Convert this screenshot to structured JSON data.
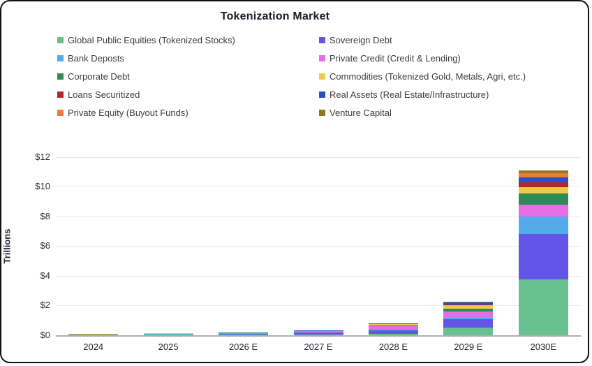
{
  "title": "Tokenization Market",
  "y_axis": {
    "label": "Trillions"
  },
  "chart_data": {
    "type": "bar",
    "stacked": true,
    "title": "Tokenization Market",
    "xlabel": "",
    "ylabel": "Trillions",
    "unit": "USD trillions",
    "ylim": [
      0,
      12
    ],
    "yticks": [
      0,
      2,
      4,
      6,
      8,
      10,
      12
    ],
    "ytick_labels": [
      "$0",
      "$2",
      "$4",
      "$6",
      "$8",
      "$10",
      "$12"
    ],
    "grid": "horizontal",
    "legend_position": "top, two columns",
    "categories": [
      "2024",
      "2025",
      "2026 E",
      "2027 E",
      "2028 E",
      "2029 E",
      "2030E"
    ],
    "series": [
      {
        "name": "Global Public Equities (Tokenized Stocks)",
        "color": "#66C18F",
        "values": [
          0.01,
          0.01,
          0.02,
          0.03,
          0.06,
          0.48,
          3.75
        ]
      },
      {
        "name": "Sovereign Debt",
        "color": "#6355E8",
        "values": [
          0.01,
          0.03,
          0.06,
          0.12,
          0.26,
          0.58,
          3.05
        ]
      },
      {
        "name": "Bank Deposts",
        "color": "#54ABEA",
        "values": [
          0.005,
          0.01,
          0.02,
          0.03,
          0.09,
          0.1,
          1.2
        ]
      },
      {
        "name": "Private Credit (Credit & Lending)",
        "color": "#E46FE4",
        "values": [
          0.005,
          0.02,
          0.03,
          0.06,
          0.18,
          0.42,
          0.8
        ]
      },
      {
        "name": "Corporate Debt",
        "color": "#2E8B57",
        "values": [
          0.005,
          0.01,
          0.015,
          0.02,
          0.07,
          0.18,
          0.75
        ]
      },
      {
        "name": "Commodities (Tokenized Gold, Metals, Agri, etc.)",
        "color": "#EFC94C",
        "values": [
          0.01,
          0.02,
          0.02,
          0.02,
          0.07,
          0.24,
          0.4
        ]
      },
      {
        "name": "Loans Securitized",
        "color": "#AF2B26",
        "values": [
          0.002,
          0.005,
          0.005,
          0.005,
          0.01,
          0.06,
          0.35
        ]
      },
      {
        "name": "Real Assets (Real Estate/Infrastructure)",
        "color": "#2B4FC7",
        "values": [
          0.003,
          0.01,
          0.01,
          0.01,
          0.02,
          0.11,
          0.3
        ]
      },
      {
        "name": "Private Equity (Buyout Funds)",
        "color": "#EF7B3A",
        "values": [
          0.002,
          0.005,
          0.005,
          0.005,
          0.01,
          0.04,
          0.3
        ]
      },
      {
        "name": "Venture Capital",
        "color": "#8F7A1F",
        "values": [
          0.003,
          0.01,
          0.005,
          0.01,
          0.01,
          0.05,
          0.2
        ]
      }
    ],
    "totals_by_category": [
      0.05,
      0.12,
      0.19,
      0.31,
      0.77,
      2.26,
      11.1
    ]
  }
}
